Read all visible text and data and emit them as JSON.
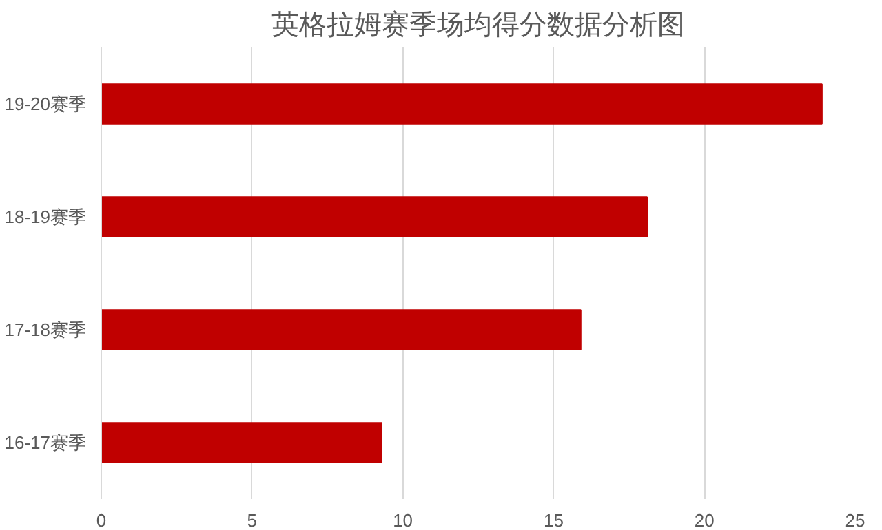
{
  "chart_data": {
    "type": "bar",
    "orientation": "horizontal",
    "title": "英格拉姆赛季场均得分数据分析图",
    "categories": [
      "19-20赛季",
      "18-19赛季",
      "17-18赛季",
      "16-17赛季"
    ],
    "values": [
      23.9,
      18.1,
      15.9,
      9.3
    ],
    "color": "#c00000",
    "xlim": [
      0,
      25
    ],
    "xticks": [
      0,
      5,
      10,
      15,
      20,
      25
    ],
    "grid": "x"
  }
}
